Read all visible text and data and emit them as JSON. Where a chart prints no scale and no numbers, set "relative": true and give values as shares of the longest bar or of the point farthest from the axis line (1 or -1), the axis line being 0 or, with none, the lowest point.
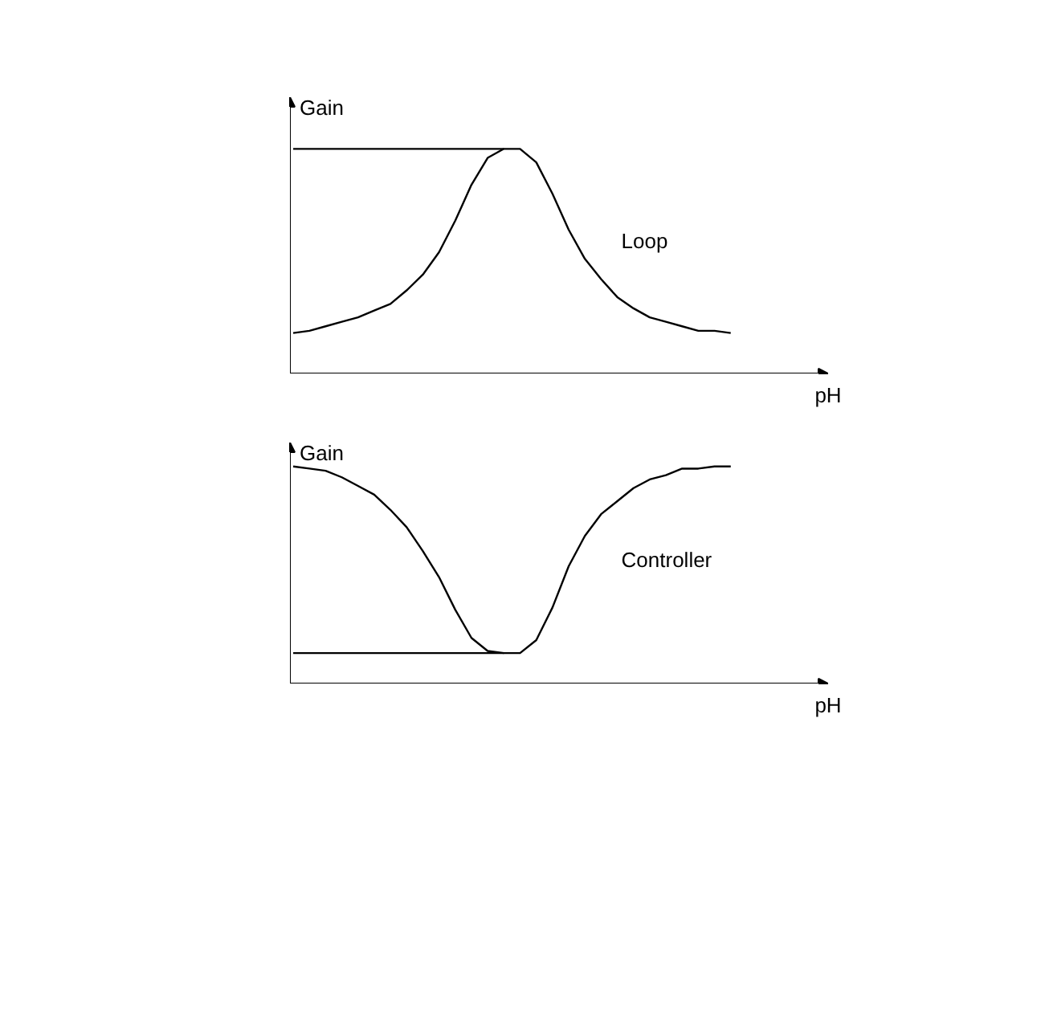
{
  "chart_data": [
    {
      "type": "line",
      "relative": true,
      "xlabel": "pH",
      "ylabel": "Gain",
      "categories": [
        null,
        null,
        null,
        null,
        null,
        null,
        null,
        null,
        null,
        null,
        null,
        null,
        null,
        null,
        null,
        null,
        null,
        null,
        null,
        null,
        null,
        null,
        null,
        null,
        null,
        null,
        null,
        null
      ],
      "series": [
        {
          "name": "Loop",
          "color": "#000000",
          "values": [
            0.18,
            0.19,
            0.21,
            0.23,
            0.25,
            0.28,
            0.31,
            0.37,
            0.44,
            0.54,
            0.68,
            0.84,
            0.96,
            1,
            1,
            0.94,
            0.8,
            0.64,
            0.51,
            0.42,
            0.34,
            0.29,
            0.25,
            0.23,
            0.21,
            0.19,
            0.19,
            0.18
          ]
        },
        {
          "color": "#000000",
          "values": [
            1,
            1,
            1,
            1,
            1,
            1,
            1,
            1,
            1,
            1,
            1,
            1,
            1,
            1,
            null,
            null,
            null,
            null,
            null,
            null,
            null,
            null,
            null,
            null,
            null,
            null,
            null,
            null
          ]
        }
      ]
    },
    {
      "type": "line",
      "relative": true,
      "xlabel": "pH",
      "ylabel": "Gain",
      "categories": [
        null,
        null,
        null,
        null,
        null,
        null,
        null,
        null,
        null,
        null,
        null,
        null,
        null,
        null,
        null,
        null,
        null,
        null,
        null,
        null,
        null,
        null,
        null,
        null,
        null,
        null,
        null,
        null
      ],
      "series": [
        {
          "name": "Controller",
          "color": "#000000",
          "values": [
            1,
            0.99,
            0.98,
            0.95,
            0.91,
            0.87,
            0.8,
            0.72,
            0.61,
            0.49,
            0.34,
            0.21,
            0.15,
            0.14,
            0.14,
            0.2,
            0.35,
            0.54,
            0.68,
            0.78,
            0.84,
            0.9,
            0.94,
            0.96,
            0.99,
            0.99,
            1,
            1
          ]
        },
        {
          "color": "#000000",
          "values": [
            0.14,
            0.14,
            0.14,
            0.14,
            0.14,
            0.14,
            0.14,
            0.14,
            0.14,
            0.14,
            0.14,
            0.14,
            0.14,
            0.14,
            null,
            null,
            null,
            null,
            null,
            null,
            null,
            null,
            null,
            null,
            null,
            null,
            null,
            null
          ]
        }
      ]
    }
  ]
}
